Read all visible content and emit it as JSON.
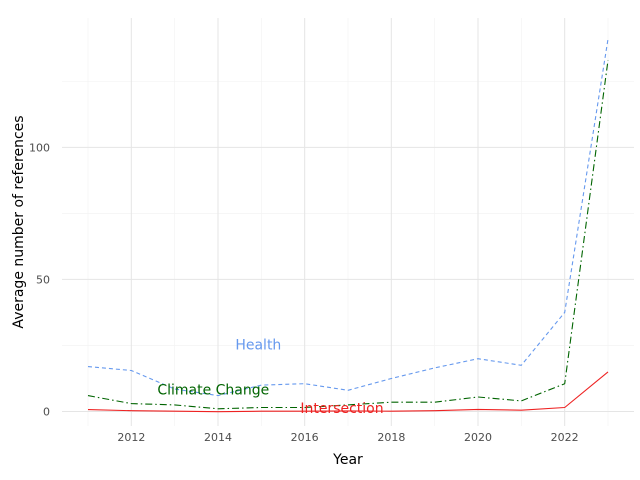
{
  "chart_data": {
    "type": "line",
    "title": "",
    "xlabel": "Year",
    "ylabel": "Average number of references",
    "xlim": [
      2010.4,
      2023.6
    ],
    "ylim": [
      -5.5,
      149
    ],
    "x_ticks": [
      2012,
      2014,
      2016,
      2018,
      2020,
      2022
    ],
    "x_tick_labels": [
      "2012",
      "2014",
      "2016",
      "2018",
      "2020",
      "2022"
    ],
    "y_ticks": [
      0,
      50,
      100
    ],
    "y_tick_labels": [
      "0",
      "50",
      "100"
    ],
    "grid": true,
    "legend": "none (direct labels)",
    "x": [
      2011,
      2012,
      2013,
      2014,
      2015,
      2016,
      2017,
      2018,
      2019,
      2020,
      2021,
      2022,
      2023
    ],
    "series": [
      {
        "name": "Health",
        "color": "#6699EE",
        "dash": "dashed",
        "values": [
          17,
          15.5,
          8.5,
          6,
          10,
          10.5,
          8,
          12.5,
          16.5,
          20,
          17.5,
          37.5,
          141
        ],
        "label_anchor": [
          2014.4,
          23.5
        ]
      },
      {
        "name": "Climate Change",
        "color": "#006400",
        "dash": "dashdot",
        "values": [
          6,
          3,
          2.5,
          1,
          1.5,
          1.5,
          2.5,
          3.5,
          3.5,
          5.5,
          4,
          10.5,
          133
        ],
        "label_anchor": [
          2012.6,
          6.5
        ]
      },
      {
        "name": "Intersection",
        "color": "#EE2222",
        "dash": "solid",
        "values": [
          0.7,
          0.3,
          0.1,
          -0.1,
          0.1,
          0.1,
          0.2,
          0.1,
          0.3,
          0.8,
          0.5,
          1.5,
          15
        ],
        "label_anchor": [
          2015.9,
          -0.5
        ]
      }
    ]
  }
}
